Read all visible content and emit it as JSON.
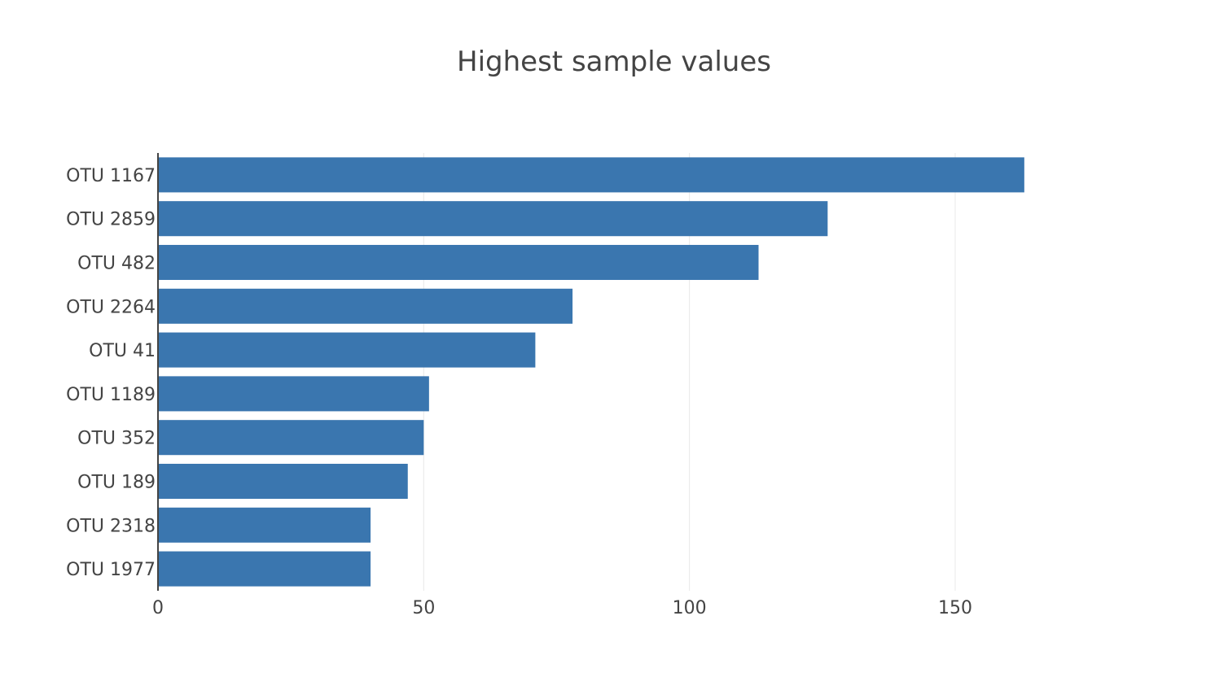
{
  "chart_data": {
    "type": "bar",
    "orientation": "horizontal",
    "title": "Highest sample values",
    "xlabel": "",
    "ylabel": "",
    "categories": [
      "OTU 1167",
      "OTU 2859",
      "OTU 482",
      "OTU 2264",
      "OTU 41",
      "OTU 1189",
      "OTU 352",
      "OTU 189",
      "OTU 2318",
      "OTU 1977"
    ],
    "values": [
      163,
      126,
      113,
      78,
      71,
      51,
      50,
      47,
      40,
      40
    ],
    "xlim": [
      0,
      200
    ],
    "x_ticks": [
      0,
      50,
      100,
      150
    ],
    "grid": "vertical",
    "bar_color": "#3a76af",
    "legend": "none"
  }
}
